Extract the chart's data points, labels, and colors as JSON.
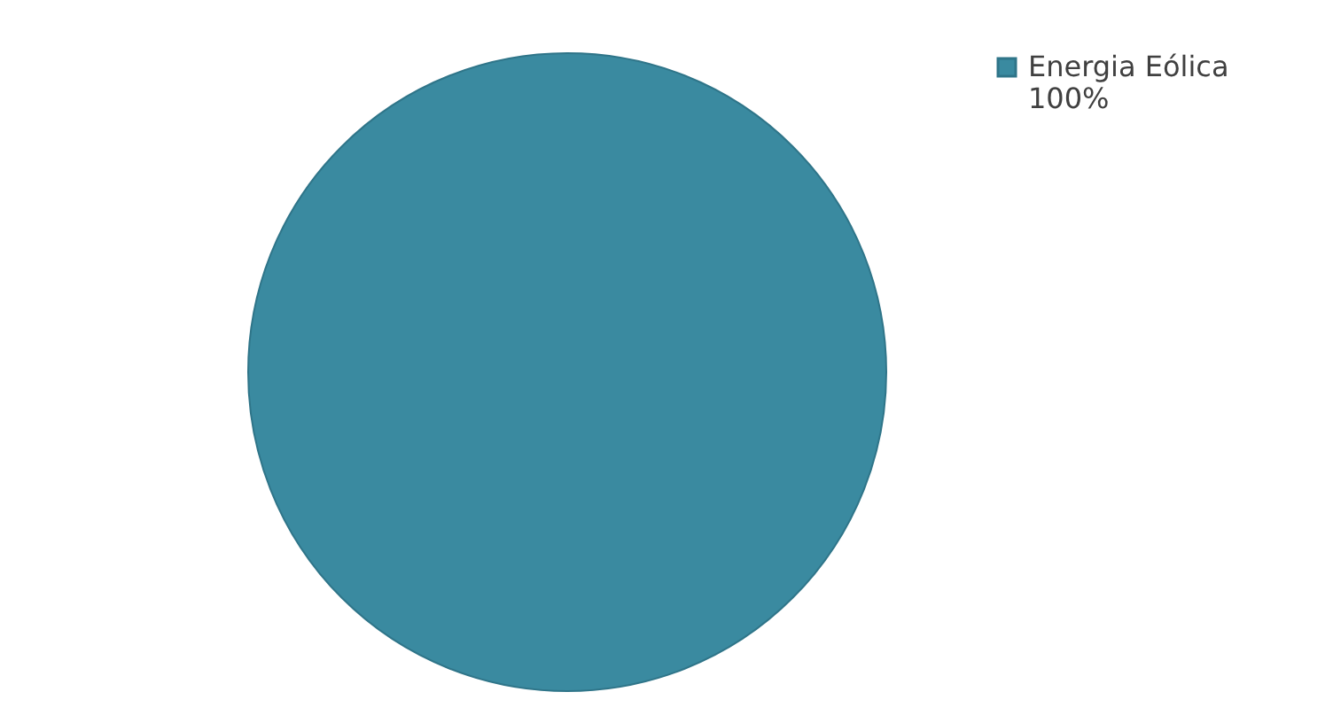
{
  "chart_data": {
    "type": "pie",
    "categories": [
      "Energia Eólica"
    ],
    "values": [
      100
    ],
    "colors": [
      "#3a8aa0"
    ],
    "value_labels": [
      "100%"
    ],
    "legend": "top right"
  }
}
